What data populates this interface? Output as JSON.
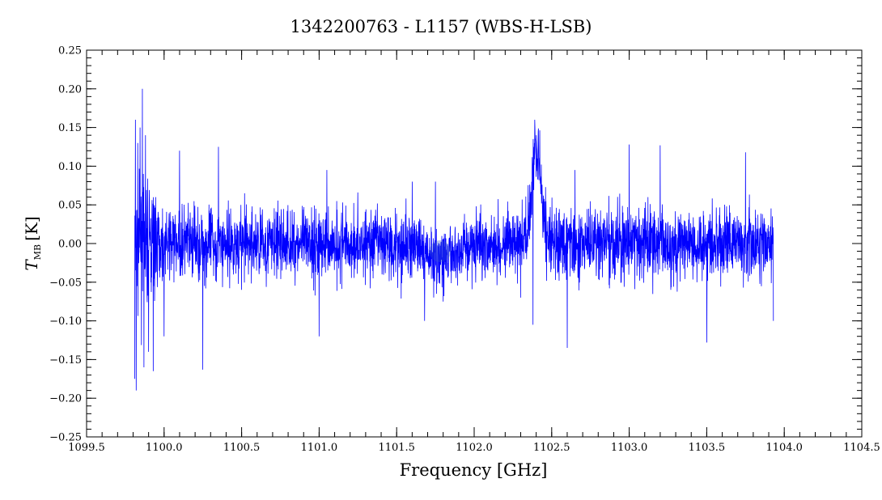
{
  "chart_data": {
    "type": "line",
    "title": "1342200763 - L1157 (WBS-H-LSB)",
    "xlabel": "Frequency [GHz]",
    "ylabel": {
      "main": "T",
      "subscript": "MB",
      "unit": "[K]"
    },
    "xlim": [
      1099.5,
      1104.5
    ],
    "ylim": [
      -0.25,
      0.25
    ],
    "x_ticks": [
      1099.5,
      1100.0,
      1100.5,
      1101.0,
      1101.5,
      1102.0,
      1102.5,
      1103.0,
      1103.5,
      1104.0,
      1104.5
    ],
    "x_tick_labels": [
      "1099.5",
      "1100.0",
      "1100.5",
      "1101.0",
      "1101.5",
      "1102.0",
      "1102.5",
      "1103.0",
      "1103.5",
      "1104.0",
      "1104.5"
    ],
    "y_ticks": [
      -0.25,
      -0.2,
      -0.15,
      -0.1,
      -0.05,
      0.0,
      0.05,
      0.1,
      0.15,
      0.2,
      0.25
    ],
    "y_tick_labels": [
      "−0.25",
      "−0.20",
      "−0.15",
      "−0.10",
      "−0.05",
      "0.00",
      "0.05",
      "0.10",
      "0.15",
      "0.20",
      "0.25"
    ],
    "grid": false,
    "series": [
      {
        "color": "#0000ff",
        "x_range": [
          1099.81,
          1103.93
        ],
        "points": [
          [
            1099.81,
            -0.175
          ],
          [
            1099.815,
            0.16
          ],
          [
            1099.82,
            -0.19
          ],
          [
            1099.83,
            0.13
          ],
          [
            1099.845,
            0.15
          ],
          [
            1099.86,
            0.2
          ],
          [
            1099.87,
            -0.16
          ],
          [
            1099.88,
            0.14
          ],
          [
            1099.9,
            -0.14
          ],
          [
            1099.93,
            -0.165
          ],
          [
            1100.0,
            -0.12
          ],
          [
            1100.1,
            0.12
          ],
          [
            1100.25,
            -0.163
          ],
          [
            1100.35,
            0.125
          ],
          [
            1101.0,
            -0.12
          ],
          [
            1101.05,
            0.095
          ],
          [
            1101.6,
            0.08
          ],
          [
            1101.68,
            -0.1
          ],
          [
            1101.75,
            0.08
          ],
          [
            1101.8,
            -0.075
          ],
          [
            1102.3,
            -0.07
          ],
          [
            1102.39,
            0.16
          ],
          [
            1102.4,
            0.14
          ],
          [
            1102.42,
            0.11
          ],
          [
            1102.38,
            -0.105
          ],
          [
            1102.6,
            -0.135
          ],
          [
            1102.65,
            0.095
          ],
          [
            1103.0,
            0.128
          ],
          [
            1103.2,
            0.127
          ],
          [
            1103.5,
            -0.128
          ],
          [
            1103.75,
            0.118
          ],
          [
            1103.93,
            -0.1
          ]
        ],
        "baseline": 0.0,
        "noise_rms": 0.038,
        "features": [
          {
            "type": "emission",
            "center": 1102.4,
            "peak": 0.13,
            "width": 0.03
          },
          {
            "type": "absorption",
            "center": 1101.78,
            "depth": -0.02,
            "width": 0.1
          }
        ]
      }
    ],
    "annotations": [
      {
        "type": "highlight-circle",
        "x": 1101.78,
        "y": -0.01,
        "radius_data_x": 0.07,
        "color": "#3355cc"
      }
    ]
  }
}
